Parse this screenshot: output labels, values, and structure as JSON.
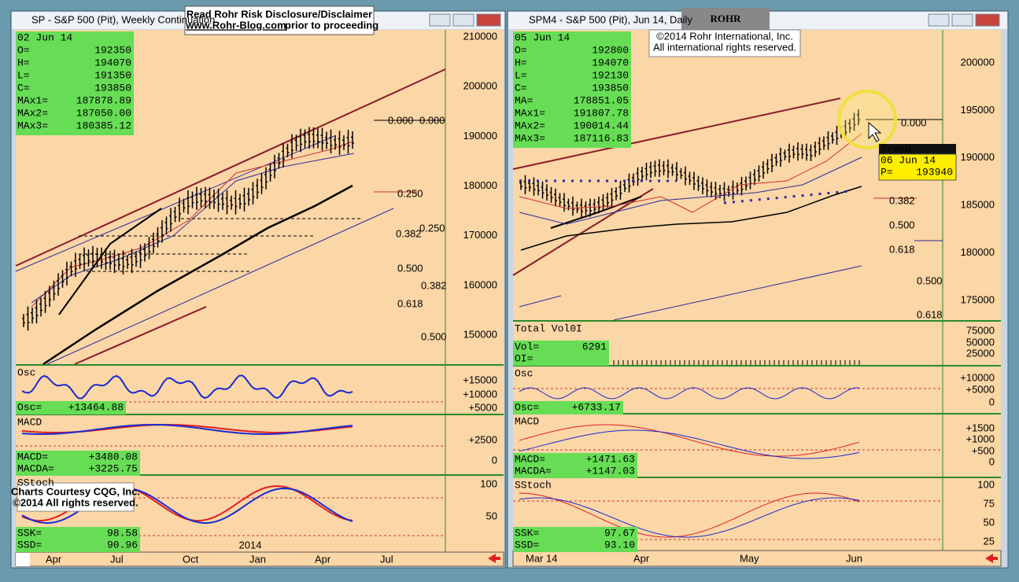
{
  "banner": {
    "title": "Read Rohr Risk Disclosure/Disclaimer",
    "link": "www.Rohr-Blog.com",
    "suffix": "prior to proceeding"
  },
  "logo": "ROHR",
  "copyright": {
    "line1": "©2014 Rohr International, Inc.",
    "line2": "All international rights reserved."
  },
  "left_panel": {
    "title": "SP - S&P 500 (Pit), Weekly Continuation",
    "info": {
      "date": "02 Jun 14",
      "rows": [
        [
          "O=",
          "192350"
        ],
        [
          "H=",
          "194070"
        ],
        [
          "L=",
          "191350"
        ],
        [
          "C=",
          "193850"
        ],
        [
          "MAx1=",
          "187878.89"
        ],
        [
          "MAx2=",
          "187050.00"
        ],
        [
          "MAx3=",
          "180385.12"
        ]
      ]
    },
    "price_axis": [
      "210000",
      "200000",
      "190000",
      "180000",
      "170000",
      "160000",
      "150000"
    ],
    "fib_labels": [
      "0.000",
      "0.000",
      "0.250",
      "0.250",
      "0.382",
      "0.500",
      "0.382",
      "0.618",
      "0.500"
    ],
    "osc": {
      "title": "Osc",
      "readout": [
        [
          "Osc=",
          "+13464.88"
        ]
      ],
      "axis": [
        "+15000",
        "+10000",
        "+5000"
      ]
    },
    "macd": {
      "title": "MACD",
      "readout": [
        [
          "MACD=",
          "+3480.08"
        ],
        [
          "MACDA=",
          "+3225.75"
        ]
      ],
      "axis": [
        "+2500",
        "0"
      ]
    },
    "sstoch": {
      "title": "SStoch",
      "readout": [
        [
          "SSK=",
          "98.58"
        ],
        [
          "SSD=",
          "90.96"
        ]
      ],
      "axis": [
        "100",
        "50"
      ]
    },
    "courtesy": [
      "Charts Courtesy CQG, Inc.",
      "©2014 All rights reserved."
    ],
    "year": "2014",
    "time_axis": [
      "Apr",
      "Jul",
      "Oct",
      "Jan",
      "Apr",
      "Jul"
    ]
  },
  "right_panel": {
    "title": "SPM4 - S&P 500 (Pit), Jun 14, Daily",
    "info": {
      "date": "05 Jun 14",
      "rows": [
        [
          "O=",
          "192800"
        ],
        [
          "H=",
          "194070"
        ],
        [
          "L=",
          "192130"
        ],
        [
          "C=",
          "193850"
        ],
        [
          "MA=",
          "178851.05"
        ],
        [
          "MAx1=",
          "191807.78"
        ],
        [
          "MAx2=",
          "190014.44"
        ],
        [
          "MAx3=",
          "187116.83"
        ]
      ]
    },
    "price_axis": [
      "200000",
      "195000",
      "190000",
      "185000",
      "180000",
      "175000"
    ],
    "fib_labels": [
      "0.000",
      "0.382",
      "0.500",
      "0.618",
      "0.500",
      "0.618"
    ],
    "trend": {
      "title": "Trend",
      "date": "06 Jun 14",
      "label": "P=",
      "value": "193940"
    },
    "volume": {
      "title": "Total Vol0I",
      "readout": [
        [
          "Vol=",
          "6291"
        ],
        [
          "OI=",
          ""
        ]
      ],
      "axis": [
        "75000",
        "50000",
        "25000"
      ]
    },
    "osc": {
      "title": "Osc",
      "readout": [
        [
          "Osc=",
          "+6733.17"
        ]
      ],
      "axis": [
        "+10000",
        "+5000",
        "0"
      ]
    },
    "macd": {
      "title": "MACD",
      "readout": [
        [
          "MACD=",
          "+1471.63"
        ],
        [
          "MACDA=",
          "+1147.03"
        ]
      ],
      "axis": [
        "+1500",
        "+1000",
        "+500",
        "0"
      ]
    },
    "sstoch": {
      "title": "SStoch",
      "readout": [
        [
          "SSK=",
          "97.67"
        ],
        [
          "SSD=",
          "93.10"
        ]
      ],
      "axis": [
        "100",
        "75",
        "50",
        "25"
      ]
    },
    "time_axis": [
      "Mar 14",
      "Apr",
      "May",
      "Jun"
    ]
  }
}
